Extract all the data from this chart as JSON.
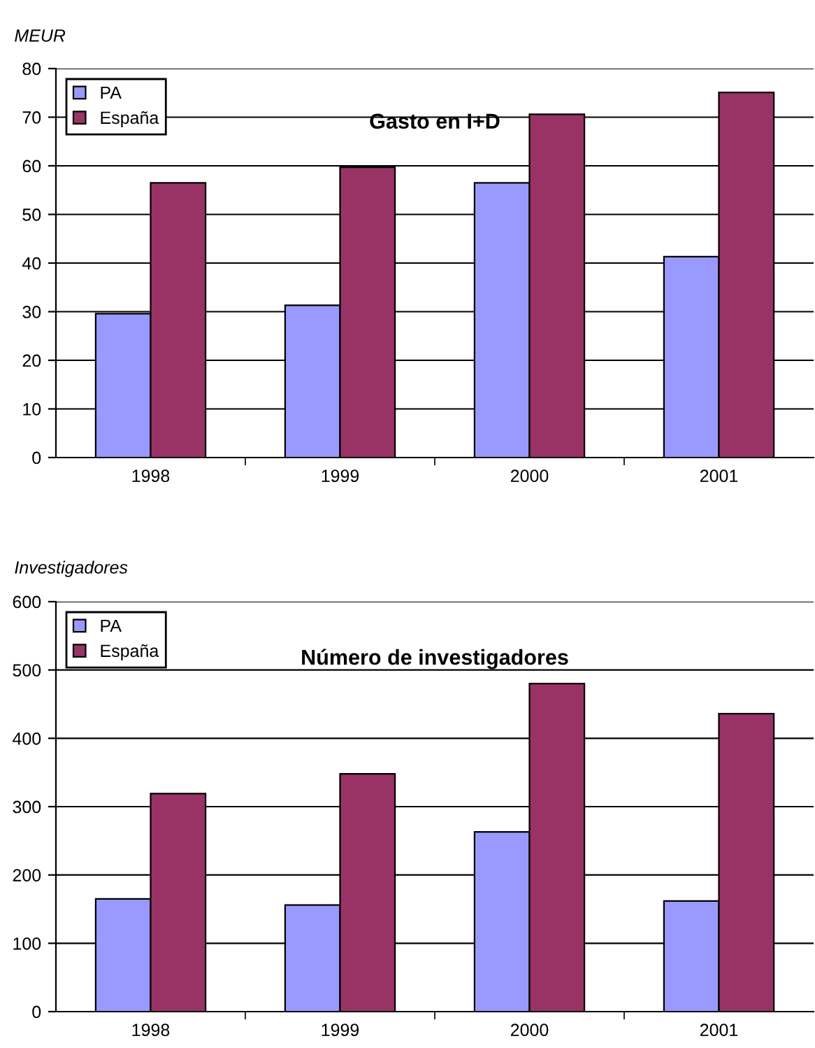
{
  "chart_data": [
    {
      "type": "bar",
      "title": "Gasto en I+D",
      "ylabel": "MEUR",
      "categories": [
        "1998",
        "1999",
        "2000",
        "2001"
      ],
      "series": [
        {
          "name": "PA",
          "color": "#9999ff",
          "values": [
            29.6,
            31.3,
            56.5,
            41.3
          ]
        },
        {
          "name": "España",
          "color": "#993366",
          "values": [
            56.5,
            59.7,
            70.6,
            75.1
          ]
        }
      ],
      "ylim": [
        0,
        80
      ],
      "yticks": [
        0,
        10,
        20,
        30,
        40,
        50,
        60,
        70,
        80
      ],
      "grid": "y",
      "legend": "top left"
    },
    {
      "type": "bar",
      "title": "Número de investigadores",
      "ylabel": "Investigadores",
      "categories": [
        "1998",
        "1999",
        "2000",
        "2001"
      ],
      "series": [
        {
          "name": "PA",
          "color": "#9999ff",
          "values": [
            165,
            156,
            263,
            162
          ]
        },
        {
          "name": "España",
          "color": "#993366",
          "values": [
            319,
            348,
            480,
            436
          ]
        }
      ],
      "ylim": [
        0,
        600
      ],
      "yticks": [
        0,
        100,
        200,
        300,
        400,
        500,
        600
      ],
      "grid": "y",
      "legend": "top left"
    }
  ]
}
